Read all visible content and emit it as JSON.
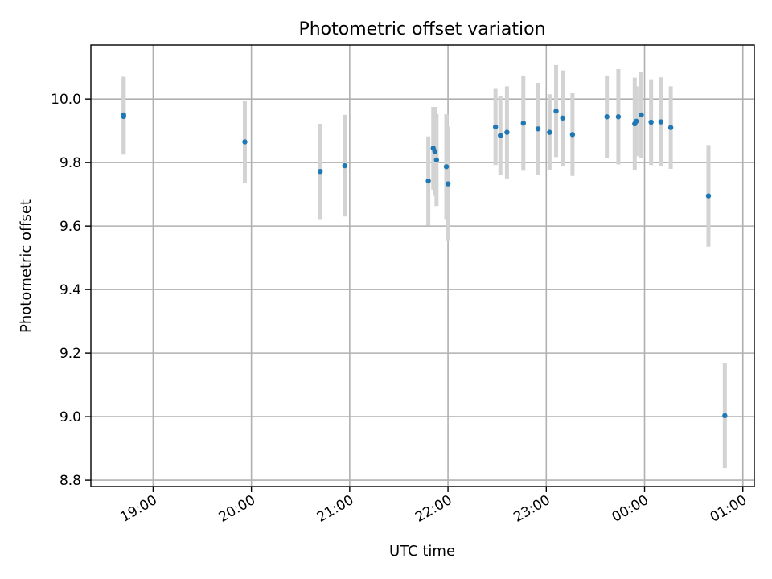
{
  "chart_data": {
    "type": "scatter",
    "title": "Photometric offset variation",
    "xlabel": "UTC time",
    "ylabel": "Photometric offset",
    "x_tick_labels": [
      "19:00",
      "20:00",
      "21:00",
      "22:00",
      "23:00",
      "00:00",
      "01:00"
    ],
    "y_tick_labels": [
      "8.8",
      "9.0",
      "9.2",
      "9.4",
      "9.6",
      "9.8",
      "10.0"
    ],
    "y_ticks": [
      8.8,
      9.0,
      9.2,
      9.4,
      9.6,
      9.8,
      10.0
    ],
    "ylim": [
      8.78,
      10.17
    ],
    "xlim": [
      "18:22",
      "01:07"
    ],
    "grid": true,
    "marker_color": "#1f77b4",
    "errorbar_color": "#d3d3d3",
    "points": [
      {
        "time": "18:42",
        "y": 9.95,
        "err": 0.12
      },
      {
        "time": "18:42",
        "y": 9.945,
        "err": 0.12
      },
      {
        "time": "19:56",
        "y": 9.865,
        "err": 0.13
      },
      {
        "time": "20:42",
        "y": 9.772,
        "err": 0.15
      },
      {
        "time": "20:57",
        "y": 9.79,
        "err": 0.16
      },
      {
        "time": "21:48",
        "y": 9.742,
        "err": 0.14
      },
      {
        "time": "21:51",
        "y": 9.845,
        "err": 0.13
      },
      {
        "time": "21:52",
        "y": 9.835,
        "err": 0.14
      },
      {
        "time": "21:53",
        "y": 9.808,
        "err": 0.145
      },
      {
        "time": "21:59",
        "y": 9.787,
        "err": 0.165
      },
      {
        "time": "22:00",
        "y": 9.733,
        "err": 0.18
      },
      {
        "time": "22:29",
        "y": 9.912,
        "err": 0.12
      },
      {
        "time": "22:32",
        "y": 9.885,
        "err": 0.125
      },
      {
        "time": "22:36",
        "y": 9.895,
        "err": 0.145
      },
      {
        "time": "22:46",
        "y": 9.924,
        "err": 0.15
      },
      {
        "time": "22:55",
        "y": 9.906,
        "err": 0.145
      },
      {
        "time": "23:02",
        "y": 9.895,
        "err": 0.12
      },
      {
        "time": "23:06",
        "y": 9.962,
        "err": 0.145
      },
      {
        "time": "23:10",
        "y": 9.94,
        "err": 0.15
      },
      {
        "time": "23:16",
        "y": 9.888,
        "err": 0.13
      },
      {
        "time": "23:37",
        "y": 9.944,
        "err": 0.13
      },
      {
        "time": "23:44",
        "y": 9.944,
        "err": 0.15
      },
      {
        "time": "23:54",
        "y": 9.922,
        "err": 0.145
      },
      {
        "time": "23:55",
        "y": 9.93,
        "err": 0.11
      },
      {
        "time": "23:58",
        "y": 9.95,
        "err": 0.135
      },
      {
        "time": "00:04",
        "y": 9.927,
        "err": 0.135
      },
      {
        "time": "00:10",
        "y": 9.928,
        "err": 0.14
      },
      {
        "time": "00:16",
        "y": 9.91,
        "err": 0.13
      },
      {
        "time": "00:39",
        "y": 9.695,
        "err": 0.16
      },
      {
        "time": "00:49",
        "y": 9.003,
        "err": 0.165
      }
    ]
  }
}
